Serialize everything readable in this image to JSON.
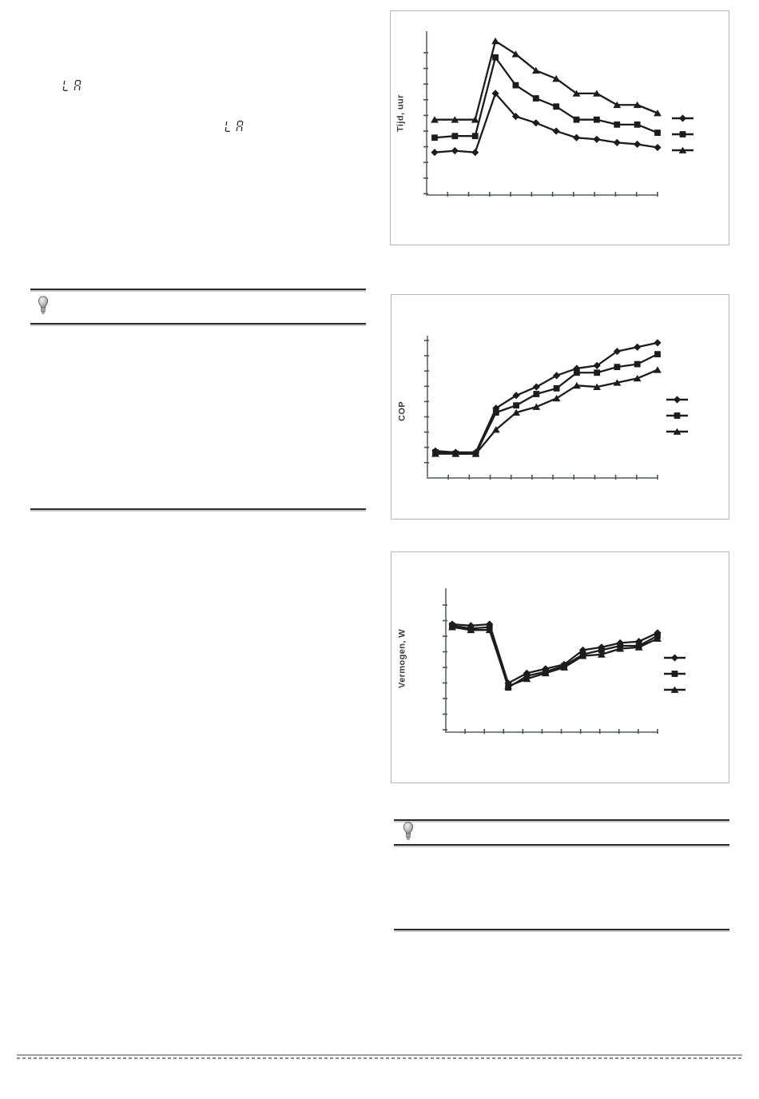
{
  "page": {
    "background_color": "#ffffff",
    "line_color": "#1c1c1c",
    "axis_color": "#7d838a",
    "panel_border_color": "#b3b6bb"
  },
  "lcd_displays": [
    {
      "text": "LA"
    },
    {
      "text": "LA"
    }
  ],
  "notes": [
    {
      "icon": "lightbulb",
      "body_text": ""
    },
    {
      "icon": "lightbulb",
      "body_text": ""
    }
  ],
  "chart_data": [
    {
      "type": "line",
      "title": "",
      "xlabel": "",
      "ylabel": "Tijd, uur",
      "x_index": [
        1,
        2,
        3,
        4,
        5,
        6,
        7,
        8,
        9,
        10,
        11,
        12
      ],
      "tick_labels": "none visible",
      "y_scale": "unlabeled, values normalized 0-1 of axis height",
      "x_tick_count": 11,
      "y_tick_count": 11,
      "grid": false,
      "legend": {
        "position": "right",
        "entries": [
          {
            "marker": "diamond",
            "label": ""
          },
          {
            "marker": "square",
            "label": ""
          },
          {
            "marker": "triangle",
            "label": ""
          }
        ]
      },
      "series": [
        {
          "name": "series-diamond",
          "marker": "diamond",
          "values": [
            0.26,
            0.27,
            0.26,
            0.62,
            0.48,
            0.44,
            0.39,
            0.35,
            0.34,
            0.32,
            0.31,
            0.29
          ]
        },
        {
          "name": "series-square",
          "marker": "square",
          "values": [
            0.35,
            0.36,
            0.36,
            0.84,
            0.67,
            0.59,
            0.54,
            0.46,
            0.46,
            0.43,
            0.43,
            0.38
          ]
        },
        {
          "name": "series-triangle",
          "marker": "triangle",
          "values": [
            0.46,
            0.46,
            0.46,
            0.94,
            0.86,
            0.76,
            0.71,
            0.62,
            0.62,
            0.55,
            0.55,
            0.5
          ]
        }
      ]
    },
    {
      "type": "line",
      "title": "",
      "xlabel": "",
      "ylabel": "COP",
      "x_index": [
        1,
        2,
        3,
        4,
        5,
        6,
        7,
        8,
        9,
        10,
        11,
        12
      ],
      "tick_labels": "none visible",
      "y_scale": "unlabeled, values normalized 0-1 of axis height",
      "x_tick_count": 11,
      "y_tick_count": 9,
      "grid": false,
      "legend": {
        "position": "right",
        "entries": [
          {
            "marker": "diamond",
            "label": ""
          },
          {
            "marker": "square",
            "label": ""
          },
          {
            "marker": "triangle",
            "label": ""
          }
        ]
      },
      "series": [
        {
          "name": "series-diamond",
          "marker": "diamond",
          "values": [
            0.19,
            0.18,
            0.18,
            0.49,
            0.58,
            0.64,
            0.72,
            0.77,
            0.79,
            0.89,
            0.92,
            0.95
          ]
        },
        {
          "name": "series-square",
          "marker": "square",
          "values": [
            0.18,
            0.17,
            0.17,
            0.46,
            0.51,
            0.59,
            0.63,
            0.74,
            0.74,
            0.78,
            0.8,
            0.87
          ]
        },
        {
          "name": "series-triangle",
          "marker": "triangle",
          "values": [
            0.17,
            0.17,
            0.17,
            0.34,
            0.46,
            0.5,
            0.56,
            0.65,
            0.64,
            0.67,
            0.7,
            0.76
          ]
        }
      ]
    },
    {
      "type": "line",
      "title": "",
      "xlabel": "",
      "ylabel": "Vermogen, W",
      "x_index": [
        1,
        2,
        3,
        4,
        5,
        6,
        7,
        8,
        9,
        10,
        11,
        12
      ],
      "tick_labels": "none visible",
      "y_scale": "unlabeled, values normalized 0-1 of axis height",
      "x_tick_count": 11,
      "y_tick_count": 9,
      "grid": false,
      "legend": {
        "position": "right",
        "entries": [
          {
            "marker": "diamond",
            "label": ""
          },
          {
            "marker": "square",
            "label": ""
          },
          {
            "marker": "triangle",
            "label": ""
          }
        ]
      },
      "series": [
        {
          "name": "series-diamond",
          "marker": "diamond",
          "values": [
            0.75,
            0.74,
            0.75,
            0.34,
            0.41,
            0.44,
            0.47,
            0.57,
            0.59,
            0.62,
            0.63,
            0.69
          ]
        },
        {
          "name": "series-square",
          "marker": "square",
          "values": [
            0.74,
            0.72,
            0.73,
            0.31,
            0.39,
            0.42,
            0.46,
            0.54,
            0.57,
            0.6,
            0.6,
            0.67
          ]
        },
        {
          "name": "series-triangle",
          "marker": "triangle",
          "values": [
            0.73,
            0.71,
            0.71,
            0.32,
            0.37,
            0.41,
            0.45,
            0.53,
            0.54,
            0.58,
            0.59,
            0.65
          ]
        }
      ]
    }
  ]
}
